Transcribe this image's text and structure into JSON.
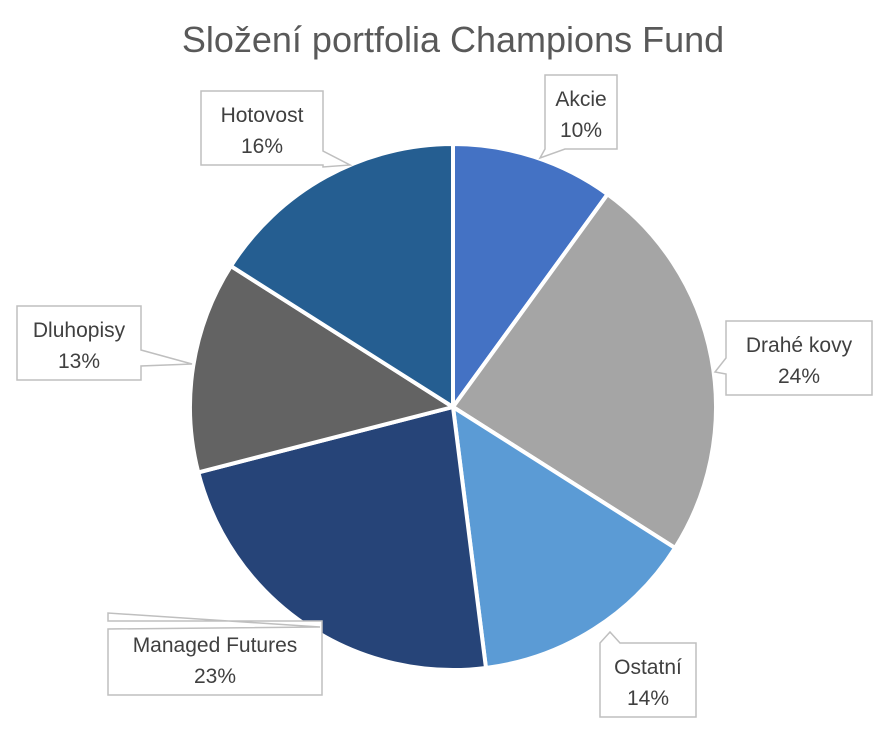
{
  "chart_data": {
    "type": "pie",
    "title": "Složení portfolia Champions Fund",
    "categories": [
      "Akcie",
      "Drahé kovy",
      "Ostatní",
      "Managed Futures",
      "Dluhopisy",
      "Hotovost"
    ],
    "values": [
      10,
      24,
      14,
      23,
      13,
      16
    ],
    "value_labels": [
      "10%",
      "24%",
      "14%",
      "23%",
      "13%",
      "16%"
    ],
    "colors": [
      "#4472C4",
      "#A5A5A5",
      "#5B9BD5",
      "#264478",
      "#636363",
      "#255E91"
    ],
    "legend": "none",
    "data_labels": "callout"
  }
}
